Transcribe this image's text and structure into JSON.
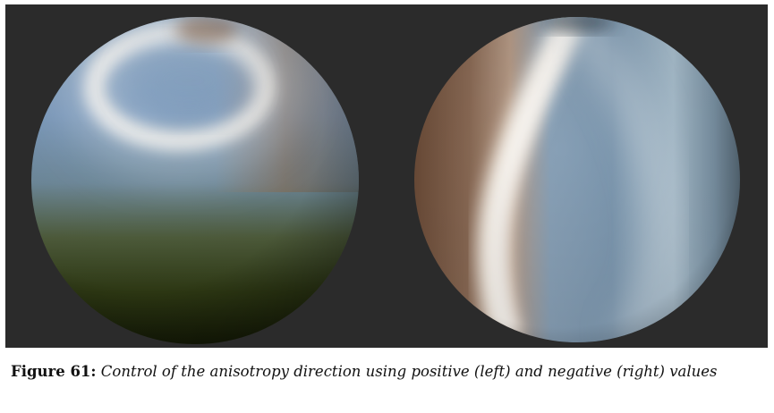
{
  "figure": {
    "panel_background": "#2b2b2b",
    "spheres": [
      {
        "name": "positive",
        "description": "positive (left)"
      },
      {
        "name": "negative",
        "description": "negative (right)"
      }
    ]
  },
  "caption": {
    "label": "Figure 61:",
    "text": "Control of the anisotropy direction using positive (left) and negative (right) values"
  }
}
